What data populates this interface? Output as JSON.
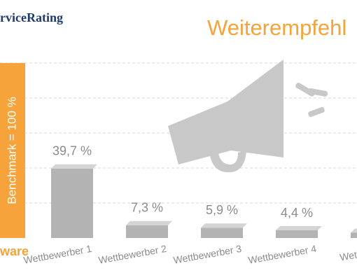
{
  "chart_data": {
    "type": "bar",
    "brand": "rviceRating",
    "title": "Weiterempfehl",
    "benchmark_label": "Benchmark = 100 %",
    "benchmark": 100,
    "benchmark_caption": "ware",
    "categories": [
      "Wettbewerber 1",
      "Wettbewerber 2",
      "Wettbewerber 3",
      "Wettbewerber 4",
      "Wettbewerb"
    ],
    "values": [
      39.7,
      7.3,
      5.9,
      4.4,
      3
    ],
    "value_labels": [
      "39,7 %",
      "7,3 %",
      "5,9 %",
      "4,4 %",
      null
    ],
    "color": "#b3b3b3",
    "benchmark_color": "#f5a33a",
    "ylim": [
      0,
      100
    ],
    "yticks": [
      20,
      40,
      60,
      80,
      100
    ],
    "grid": true
  }
}
